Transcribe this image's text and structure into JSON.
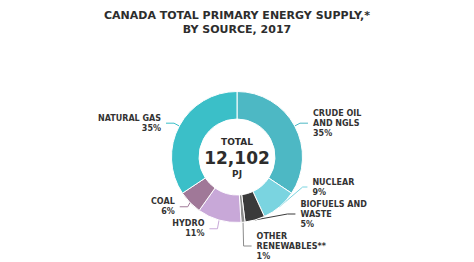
{
  "chart_data": {
    "type": "pie",
    "title": "CANADA TOTAL PRIMARY ENERGY SUPPLY,*\nBY SOURCE, 2017",
    "categories": [
      "CRUDE OIL\nAND NGLS",
      "NUCLEAR",
      "BIOFUELS AND\nWASTE",
      "OTHER\nRENEWABLES**",
      "HYDRO",
      "COAL",
      "NATURAL GAS"
    ],
    "values": [
      35,
      9,
      5,
      1,
      11,
      6,
      35
    ],
    "value_labels": [
      "35%",
      "9%",
      "5%",
      "1%",
      "11%",
      "6%",
      "35%"
    ],
    "colors": [
      "#4db8c4",
      "#7ad4e0",
      "#3a3a3a",
      "#8c8c8c",
      "#c8a8d8",
      "#a07898",
      "#3bbfc8"
    ],
    "data_labels": true,
    "annotations": [
      "TOTAL",
      "12,102",
      "PJ"
    ]
  }
}
